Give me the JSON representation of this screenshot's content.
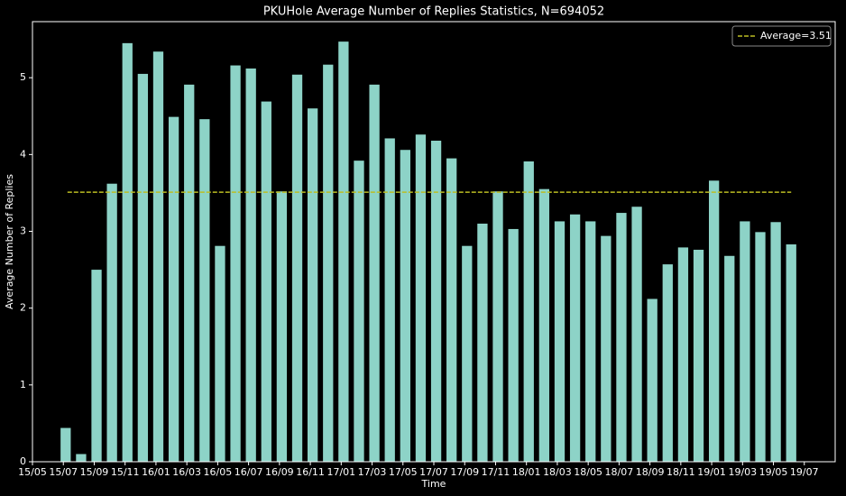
{
  "chart_data": {
    "type": "bar",
    "title": "PKUHole Average Number of Replies Statistics, N=694052",
    "xlabel": "Time",
    "ylabel": "Average Number of Replies",
    "x": [
      "15/07",
      "15/08",
      "15/09",
      "15/10",
      "15/11",
      "15/12",
      "16/01",
      "16/02",
      "16/03",
      "16/04",
      "16/05",
      "16/06",
      "16/07",
      "16/08",
      "16/09",
      "16/10",
      "16/11",
      "16/12",
      "17/01",
      "17/02",
      "17/03",
      "17/04",
      "17/05",
      "17/06",
      "17/07",
      "17/08",
      "17/09",
      "17/10",
      "17/11",
      "17/12",
      "18/01",
      "18/02",
      "18/03",
      "18/04",
      "18/05",
      "18/06",
      "18/07",
      "18/08",
      "18/09",
      "18/10",
      "18/11",
      "18/12",
      "19/01",
      "19/02",
      "19/03",
      "19/04",
      "19/05",
      "19/06"
    ],
    "values": [
      0.44,
      0.1,
      2.5,
      3.62,
      5.45,
      5.05,
      5.34,
      4.49,
      4.91,
      4.46,
      2.81,
      5.16,
      5.12,
      4.69,
      3.52,
      5.04,
      4.6,
      5.17,
      5.47,
      3.92,
      4.91,
      4.21,
      4.06,
      4.26,
      4.18,
      3.95,
      2.81,
      3.1,
      3.52,
      3.03,
      3.91,
      3.55,
      3.13,
      3.22,
      3.13,
      2.94,
      3.24,
      3.32,
      2.12,
      2.57,
      2.79,
      2.76,
      3.66,
      2.68,
      3.13,
      2.99,
      3.12,
      2.83
    ],
    "color": "#8dd3c7",
    "average": {
      "name": "Average=3.51",
      "value": 3.51,
      "color": "#bcbd22"
    },
    "legend": "upper right",
    "xlim": [
      "15/05",
      "19/09"
    ],
    "xticks": [
      "15/05",
      "15/07",
      "15/09",
      "15/11",
      "16/01",
      "16/03",
      "16/05",
      "16/07",
      "16/09",
      "16/11",
      "17/01",
      "17/03",
      "17/05",
      "17/07",
      "17/09",
      "17/11",
      "18/01",
      "18/03",
      "18/05",
      "18/07",
      "18/09",
      "18/11",
      "19/01",
      "19/03",
      "19/05",
      "19/07"
    ],
    "ylim": [
      0,
      5.73
    ],
    "yticks": [
      0,
      1,
      2,
      3,
      4,
      5
    ]
  }
}
